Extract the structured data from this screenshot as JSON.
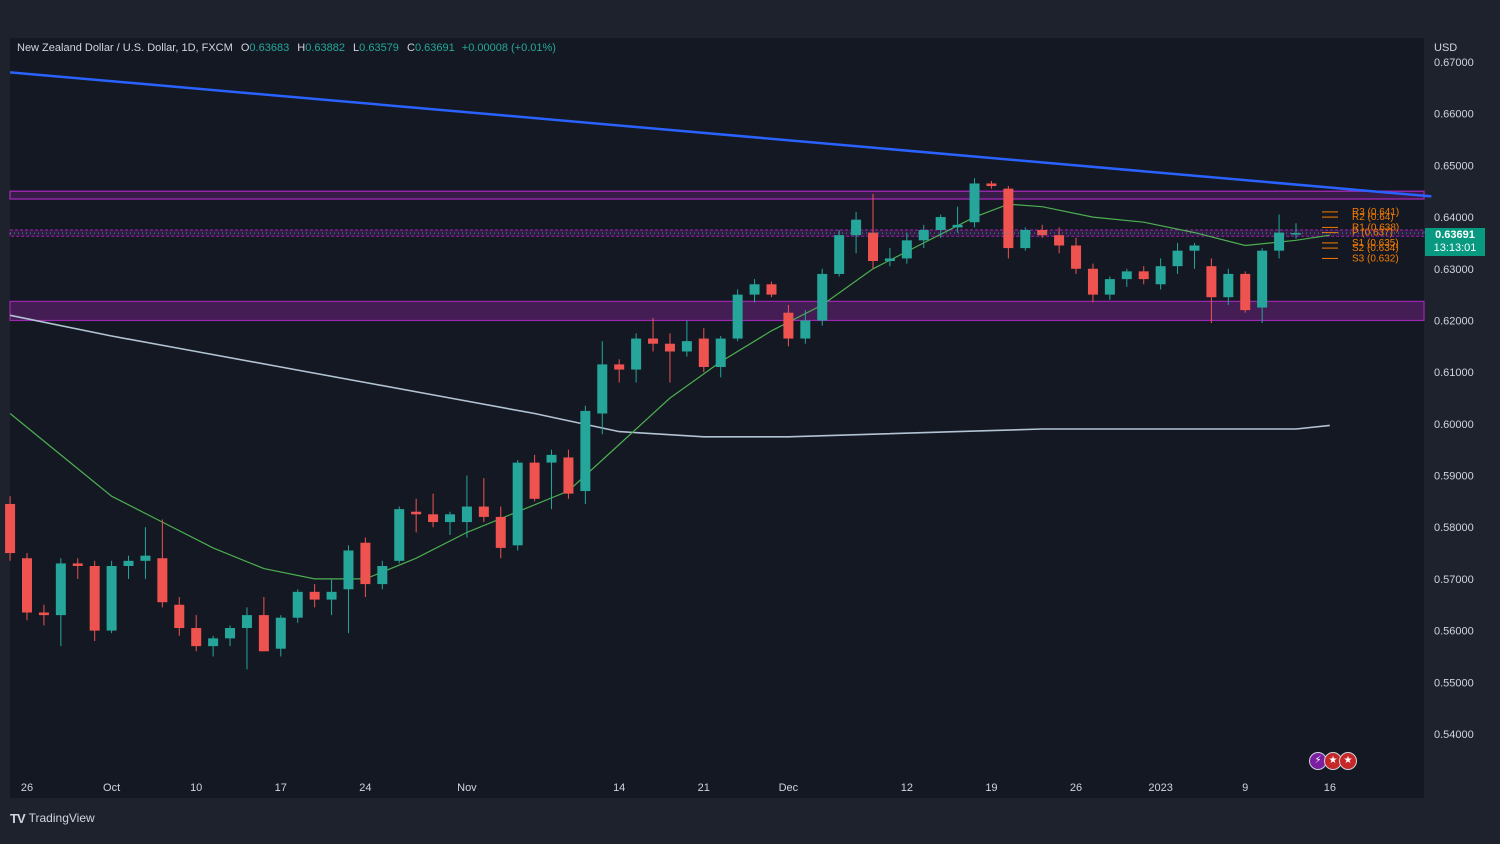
{
  "legend": {
    "symbol": "New Zealand Dollar / U.S. Dollar, 1D, FXCM",
    "o_label": "O",
    "o_value": "0.63683",
    "h_label": "H",
    "h_value": "0.63882",
    "l_label": "L",
    "l_value": "0.63579",
    "c_label": "C",
    "c_value": "0.63691",
    "change": "+0.00008 (+0.01%)"
  },
  "axis_currency": "USD",
  "price_tag": {
    "price": "0.63691",
    "countdown": "13:13:01"
  },
  "footer": {
    "brand": "TradingView",
    "mark": "TV"
  },
  "flags": {
    "icons": [
      "lightning-icon",
      "us-flag-icon",
      "us-flag-icon"
    ]
  },
  "colors": {
    "background": "#141823",
    "up": "#26a69a",
    "down": "#ef5350",
    "trendline": "#2962ff",
    "zone": "#9c27b0",
    "ma_fast": "#4caf50",
    "ma_slow": "#b2c3d4",
    "pivots": "#f57c00",
    "price_tag": "#089981"
  },
  "chart_data": {
    "type": "candlestick",
    "title": "New Zealand Dollar / U.S. Dollar, 1D, FXCM",
    "ylabel": "USD",
    "ylim": [
      0.535,
      0.672
    ],
    "y_ticks": [
      "0.67000",
      "0.66000",
      "0.65000",
      "0.64000",
      "0.63000",
      "0.62000",
      "0.61000",
      "0.60000",
      "0.59000",
      "0.58000",
      "0.57000",
      "0.56000",
      "0.55000",
      "0.54000"
    ],
    "x_tick_labels": [
      "26",
      "Oct",
      "10",
      "17",
      "24",
      "Nov",
      "14",
      "21",
      "Dec",
      "12",
      "19",
      "26",
      "2023",
      "9",
      "16"
    ],
    "x_tick_days": [
      0,
      5,
      10,
      15,
      20,
      26,
      35,
      40,
      45,
      52,
      57,
      62,
      67,
      72,
      77
    ],
    "candles": [
      {
        "d": -1,
        "o": 0.5845,
        "h": 0.586,
        "l": 0.5735,
        "c": 0.575
      },
      {
        "d": 0,
        "o": 0.574,
        "h": 0.575,
        "l": 0.562,
        "c": 0.5635
      },
      {
        "d": 1,
        "o": 0.5635,
        "h": 0.565,
        "l": 0.561,
        "c": 0.563
      },
      {
        "d": 2,
        "o": 0.563,
        "h": 0.574,
        "l": 0.557,
        "c": 0.573
      },
      {
        "d": 3,
        "o": 0.573,
        "h": 0.574,
        "l": 0.57,
        "c": 0.5725
      },
      {
        "d": 4,
        "o": 0.5725,
        "h": 0.5735,
        "l": 0.558,
        "c": 0.56
      },
      {
        "d": 5,
        "o": 0.56,
        "h": 0.5735,
        "l": 0.5595,
        "c": 0.5725
      },
      {
        "d": 6,
        "o": 0.5725,
        "h": 0.5745,
        "l": 0.57,
        "c": 0.5735
      },
      {
        "d": 7,
        "o": 0.5735,
        "h": 0.58,
        "l": 0.57,
        "c": 0.5745
      },
      {
        "d": 8,
        "o": 0.574,
        "h": 0.5815,
        "l": 0.5645,
        "c": 0.5655
      },
      {
        "d": 9,
        "o": 0.565,
        "h": 0.5665,
        "l": 0.559,
        "c": 0.5605
      },
      {
        "d": 10,
        "o": 0.5605,
        "h": 0.563,
        "l": 0.556,
        "c": 0.557
      },
      {
        "d": 11,
        "o": 0.557,
        "h": 0.559,
        "l": 0.555,
        "c": 0.5585
      },
      {
        "d": 12,
        "o": 0.5585,
        "h": 0.561,
        "l": 0.557,
        "c": 0.5605
      },
      {
        "d": 13,
        "o": 0.5605,
        "h": 0.5645,
        "l": 0.5525,
        "c": 0.563
      },
      {
        "d": 14,
        "o": 0.563,
        "h": 0.5665,
        "l": 0.556,
        "c": 0.556
      },
      {
        "d": 15,
        "o": 0.5565,
        "h": 0.563,
        "l": 0.555,
        "c": 0.5625
      },
      {
        "d": 16,
        "o": 0.5625,
        "h": 0.568,
        "l": 0.5615,
        "c": 0.5675
      },
      {
        "d": 17,
        "o": 0.5675,
        "h": 0.569,
        "l": 0.5645,
        "c": 0.566
      },
      {
        "d": 18,
        "o": 0.566,
        "h": 0.57,
        "l": 0.563,
        "c": 0.5675
      },
      {
        "d": 19,
        "o": 0.568,
        "h": 0.5765,
        "l": 0.5595,
        "c": 0.5755
      },
      {
        "d": 20,
        "o": 0.577,
        "h": 0.578,
        "l": 0.5665,
        "c": 0.569
      },
      {
        "d": 21,
        "o": 0.569,
        "h": 0.5735,
        "l": 0.568,
        "c": 0.5725
      },
      {
        "d": 22,
        "o": 0.5735,
        "h": 0.584,
        "l": 0.573,
        "c": 0.5835
      },
      {
        "d": 23,
        "o": 0.583,
        "h": 0.5855,
        "l": 0.579,
        "c": 0.5825
      },
      {
        "d": 24,
        "o": 0.5825,
        "h": 0.5865,
        "l": 0.58,
        "c": 0.581
      },
      {
        "d": 25,
        "o": 0.581,
        "h": 0.583,
        "l": 0.5785,
        "c": 0.5825
      },
      {
        "d": 26,
        "o": 0.581,
        "h": 0.59,
        "l": 0.578,
        "c": 0.584
      },
      {
        "d": 27,
        "o": 0.584,
        "h": 0.5895,
        "l": 0.581,
        "c": 0.582
      },
      {
        "d": 28,
        "o": 0.582,
        "h": 0.584,
        "l": 0.574,
        "c": 0.576
      },
      {
        "d": 29,
        "o": 0.5765,
        "h": 0.593,
        "l": 0.5755,
        "c": 0.5925
      },
      {
        "d": 30,
        "o": 0.5925,
        "h": 0.594,
        "l": 0.585,
        "c": 0.5855
      },
      {
        "d": 31,
        "o": 0.5925,
        "h": 0.595,
        "l": 0.5835,
        "c": 0.594
      },
      {
        "d": 32,
        "o": 0.5935,
        "h": 0.595,
        "l": 0.5855,
        "c": 0.5865
      },
      {
        "d": 33,
        "o": 0.587,
        "h": 0.6035,
        "l": 0.5845,
        "c": 0.6025
      },
      {
        "d": 34,
        "o": 0.602,
        "h": 0.616,
        "l": 0.598,
        "c": 0.6115
      },
      {
        "d": 35,
        "o": 0.6115,
        "h": 0.6125,
        "l": 0.608,
        "c": 0.6105
      },
      {
        "d": 36,
        "o": 0.6105,
        "h": 0.6175,
        "l": 0.608,
        "c": 0.6165
      },
      {
        "d": 37,
        "o": 0.6165,
        "h": 0.6205,
        "l": 0.614,
        "c": 0.6155
      },
      {
        "d": 38,
        "o": 0.6155,
        "h": 0.6175,
        "l": 0.608,
        "c": 0.614
      },
      {
        "d": 39,
        "o": 0.614,
        "h": 0.62,
        "l": 0.613,
        "c": 0.616
      },
      {
        "d": 40,
        "o": 0.6165,
        "h": 0.6185,
        "l": 0.61,
        "c": 0.611
      },
      {
        "d": 41,
        "o": 0.611,
        "h": 0.617,
        "l": 0.609,
        "c": 0.6165
      },
      {
        "d": 42,
        "o": 0.6165,
        "h": 0.626,
        "l": 0.616,
        "c": 0.625
      },
      {
        "d": 43,
        "o": 0.625,
        "h": 0.628,
        "l": 0.6235,
        "c": 0.627
      },
      {
        "d": 44,
        "o": 0.627,
        "h": 0.6275,
        "l": 0.6245,
        "c": 0.625
      },
      {
        "d": 45,
        "o": 0.6215,
        "h": 0.623,
        "l": 0.615,
        "c": 0.6165
      },
      {
        "d": 46,
        "o": 0.6165,
        "h": 0.622,
        "l": 0.6155,
        "c": 0.62
      },
      {
        "d": 47,
        "o": 0.62,
        "h": 0.63,
        "l": 0.619,
        "c": 0.629
      },
      {
        "d": 48,
        "o": 0.629,
        "h": 0.6375,
        "l": 0.6285,
        "c": 0.6365
      },
      {
        "d": 49,
        "o": 0.6365,
        "h": 0.641,
        "l": 0.633,
        "c": 0.6395
      },
      {
        "d": 50,
        "o": 0.637,
        "h": 0.6445,
        "l": 0.63,
        "c": 0.6315
      },
      {
        "d": 51,
        "o": 0.6315,
        "h": 0.634,
        "l": 0.6305,
        "c": 0.632
      },
      {
        "d": 52,
        "o": 0.632,
        "h": 0.637,
        "l": 0.631,
        "c": 0.6355
      },
      {
        "d": 53,
        "o": 0.6355,
        "h": 0.6385,
        "l": 0.634,
        "c": 0.6375
      },
      {
        "d": 54,
        "o": 0.6375,
        "h": 0.6405,
        "l": 0.636,
        "c": 0.64
      },
      {
        "d": 55,
        "o": 0.638,
        "h": 0.642,
        "l": 0.637,
        "c": 0.6385
      },
      {
        "d": 56,
        "o": 0.639,
        "h": 0.6475,
        "l": 0.638,
        "c": 0.6465
      },
      {
        "d": 57,
        "o": 0.6465,
        "h": 0.647,
        "l": 0.6455,
        "c": 0.646
      },
      {
        "d": 58,
        "o": 0.6455,
        "h": 0.646,
        "l": 0.632,
        "c": 0.634
      },
      {
        "d": 59,
        "o": 0.634,
        "h": 0.638,
        "l": 0.6335,
        "c": 0.6375
      },
      {
        "d": 60,
        "o": 0.6375,
        "h": 0.6385,
        "l": 0.636,
        "c": 0.6365
      },
      {
        "d": 61,
        "o": 0.6365,
        "h": 0.638,
        "l": 0.633,
        "c": 0.6345
      },
      {
        "d": 62,
        "o": 0.6345,
        "h": 0.636,
        "l": 0.629,
        "c": 0.63
      },
      {
        "d": 63,
        "o": 0.63,
        "h": 0.631,
        "l": 0.6235,
        "c": 0.625
      },
      {
        "d": 64,
        "o": 0.625,
        "h": 0.6285,
        "l": 0.624,
        "c": 0.628
      },
      {
        "d": 65,
        "o": 0.628,
        "h": 0.63,
        "l": 0.6265,
        "c": 0.6295
      },
      {
        "d": 66,
        "o": 0.6295,
        "h": 0.6305,
        "l": 0.627,
        "c": 0.628
      },
      {
        "d": 67,
        "o": 0.627,
        "h": 0.632,
        "l": 0.626,
        "c": 0.6305
      },
      {
        "d": 68,
        "o": 0.6305,
        "h": 0.635,
        "l": 0.629,
        "c": 0.6335
      },
      {
        "d": 69,
        "o": 0.6335,
        "h": 0.635,
        "l": 0.63,
        "c": 0.6345
      },
      {
        "d": 70,
        "o": 0.6305,
        "h": 0.632,
        "l": 0.6195,
        "c": 0.6245
      },
      {
        "d": 71,
        "o": 0.6245,
        "h": 0.63,
        "l": 0.623,
        "c": 0.629
      },
      {
        "d": 72,
        "o": 0.629,
        "h": 0.6295,
        "l": 0.6215,
        "c": 0.622
      },
      {
        "d": 73,
        "o": 0.6225,
        "h": 0.634,
        "l": 0.6195,
        "c": 0.6335
      },
      {
        "d": 74,
        "o": 0.6335,
        "h": 0.6405,
        "l": 0.632,
        "c": 0.637
      },
      {
        "d": 75,
        "o": 0.6368,
        "h": 0.6388,
        "l": 0.6358,
        "c": 0.6369
      }
    ],
    "trendline": [
      {
        "d": -1,
        "y": 0.668
      },
      {
        "d": 83,
        "y": 0.644
      }
    ],
    "zones": [
      {
        "y_low": 0.6435,
        "y_high": 0.645,
        "style": "line"
      },
      {
        "y_low": 0.6363,
        "y_high": 0.6375,
        "style": "dashed"
      },
      {
        "y_low": 0.62,
        "y_high": 0.6237,
        "style": "band"
      }
    ],
    "ma_fast": [
      {
        "d": -1,
        "y": 0.602
      },
      {
        "d": 2,
        "y": 0.594
      },
      {
        "d": 5,
        "y": 0.586
      },
      {
        "d": 8,
        "y": 0.581
      },
      {
        "d": 11,
        "y": 0.576
      },
      {
        "d": 14,
        "y": 0.572
      },
      {
        "d": 17,
        "y": 0.57
      },
      {
        "d": 20,
        "y": 0.57
      },
      {
        "d": 23,
        "y": 0.574
      },
      {
        "d": 26,
        "y": 0.579
      },
      {
        "d": 29,
        "y": 0.583
      },
      {
        "d": 32,
        "y": 0.587
      },
      {
        "d": 35,
        "y": 0.596
      },
      {
        "d": 38,
        "y": 0.605
      },
      {
        "d": 41,
        "y": 0.612
      },
      {
        "d": 44,
        "y": 0.618
      },
      {
        "d": 47,
        "y": 0.623
      },
      {
        "d": 50,
        "y": 0.63
      },
      {
        "d": 53,
        "y": 0.635
      },
      {
        "d": 56,
        "y": 0.64
      },
      {
        "d": 58,
        "y": 0.6425
      },
      {
        "d": 60,
        "y": 0.642
      },
      {
        "d": 63,
        "y": 0.64
      },
      {
        "d": 66,
        "y": 0.639
      },
      {
        "d": 69,
        "y": 0.637
      },
      {
        "d": 72,
        "y": 0.6345
      },
      {
        "d": 75,
        "y": 0.6355
      },
      {
        "d": 77,
        "y": 0.6365
      }
    ],
    "ma_slow": [
      {
        "d": -1,
        "y": 0.621
      },
      {
        "d": 5,
        "y": 0.617
      },
      {
        "d": 10,
        "y": 0.614
      },
      {
        "d": 15,
        "y": 0.611
      },
      {
        "d": 20,
        "y": 0.608
      },
      {
        "d": 25,
        "y": 0.605
      },
      {
        "d": 30,
        "y": 0.602
      },
      {
        "d": 35,
        "y": 0.5985
      },
      {
        "d": 40,
        "y": 0.5975
      },
      {
        "d": 45,
        "y": 0.5975
      },
      {
        "d": 50,
        "y": 0.598
      },
      {
        "d": 55,
        "y": 0.5985
      },
      {
        "d": 60,
        "y": 0.599
      },
      {
        "d": 65,
        "y": 0.599
      },
      {
        "d": 70,
        "y": 0.599
      },
      {
        "d": 75,
        "y": 0.599
      },
      {
        "d": 77,
        "y": 0.5997
      }
    ],
    "pivots": [
      {
        "label": "R3 (0.641)",
        "value": 0.641
      },
      {
        "label": "R2 (0.64)",
        "value": 0.64
      },
      {
        "label": "R1 (0.638)",
        "value": 0.638
      },
      {
        "label": "P (0.637)",
        "value": 0.637
      },
      {
        "label": "S1 (0.635)",
        "value": 0.635
      },
      {
        "label": "S2 (0.634)",
        "value": 0.634
      },
      {
        "label": "S3 (0.632)",
        "value": 0.632
      }
    ]
  }
}
